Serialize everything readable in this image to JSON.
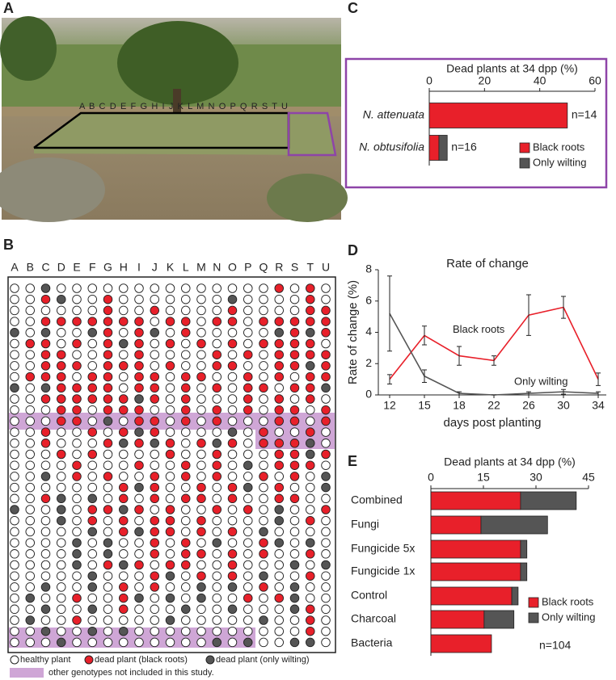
{
  "panels": [
    "A",
    "B",
    "C",
    "D",
    "E"
  ],
  "photo": {
    "column_letters": "A B C D E F G H I J K L M N O P Q R S T U"
  },
  "grid": {
    "columns": [
      "A",
      "B",
      "C",
      "D",
      "E",
      "F",
      "G",
      "H",
      "I",
      "J",
      "K",
      "L",
      "M",
      "N",
      "O",
      "P",
      "Q",
      "R",
      "S",
      "T",
      "U"
    ],
    "rows": [
      "..g..............r.r.",
      "..rg..r.......g....r.",
      "......r..r....r....rr",
      "..rrrrrrr.rr.rr.rrrrr",
      "g.g..gr.rg.r.....grgr",
      ".rr.r.rgr.r.r.r.rrrr.",
      "..rr..r.r....r.r.rrrr",
      "..rrr.rrr.r..rr..rrgr",
      ".rrr.rr.rr.rr..r.r.rr",
      "g.grrrr.rr.r.r.rr.rrg",
      "..rrrrrrgr.r...r.r.r.",
      "...rr.rrr..r.r.r.rr.r",
      "...rr.g.rr.r.r...rr.r",
      "..r..r.rgr....g.r..r.",
      "..r...rgrgr.rgr.rrrg.",
      "...r.r....r..r...rrgr",
      "....r...r..r.r.g.rrr.",
      "..g.r.r..r.r.r..r.r.g",
      ".......rgr..r.rg.r..g",
      "..rg.g.r.r.rr.r..rr..",
      "g..g.rrgr.r..r.r.g..r",
      "...g.r.r.rr.r....g.r.",
      ".....g.rgrr.r.r.g....",
      "....g.g..r.r.g..rg.g.",
      "....g.g..r.rr.r.r..r.",
      "....g.rgr.rr..r...g.g",
      ".....g...rg.r.r.g..r.",
      "..g..g.r.r..g.g.r.g..",
      ".g..r..rg.g.g..r.rg..",
      "..g..g.r...g..g...gr.",
      ".g..r.....g.....g..r.",
      "..g..g.g...........r.",
      "...g.........g.g..gg."
    ],
    "legend": [
      "healthy plant",
      "dead plant (black roots)",
      "dead plant (only wilting)"
    ],
    "note": "other genotypes not included in this study."
  },
  "chart_data": [
    {
      "type": "bar",
      "orientation": "horizontal",
      "stacked": true,
      "title": "Dead plants at 34 dpp (%)",
      "categories": [
        "N. attenuata",
        "N. obtusifolia"
      ],
      "series": [
        {
          "name": "Black roots",
          "color": "#e8202a",
          "values": [
            50,
            3.5
          ]
        },
        {
          "name": "Only wilting",
          "color": "#555555",
          "values": [
            0,
            3
          ]
        }
      ],
      "xlim": [
        0,
        60
      ],
      "xticks": [
        0,
        20,
        40,
        60
      ],
      "annotations": [
        "n=14",
        "n=16"
      ],
      "legend": "lower right"
    },
    {
      "type": "line",
      "title": "Rate of change",
      "categories": [
        "12",
        "15",
        "18",
        "22",
        "26",
        "30",
        "34"
      ],
      "xlabel": "days post planting",
      "ylabel": "Rate of change (%)",
      "series": [
        {
          "name": "Black roots",
          "color": "#e8202a",
          "values": [
            1,
            3.8,
            2.5,
            2.2,
            5.1,
            5.6,
            1
          ],
          "errors": [
            0.3,
            0.6,
            0.6,
            0.3,
            1.3,
            0.7,
            0.4
          ]
        },
        {
          "name": "Only wilting",
          "color": "#555555",
          "values": [
            5.2,
            1.2,
            0.1,
            0,
            0.1,
            0.2,
            0.1
          ],
          "errors": [
            2.4,
            0.4,
            0.1,
            0,
            0.1,
            0.15,
            0.1
          ]
        }
      ],
      "ylim": [
        0,
        8
      ],
      "yticks": [
        0,
        2,
        4,
        6,
        8
      ]
    },
    {
      "type": "bar",
      "orientation": "horizontal",
      "stacked": true,
      "title": "Dead plants at 34 dpp (%)",
      "categories": [
        "Combined",
        "Fungi",
        "Fungicide 5x",
        "Fungicide 1x",
        "Control",
        "Charcoal",
        "Bacteria"
      ],
      "series": [
        {
          "name": "Black roots",
          "color": "#e8202a",
          "values": [
            25.6,
            14.3,
            25.6,
            25.6,
            23.1,
            15.2,
            17.3
          ]
        },
        {
          "name": "Only wilting",
          "color": "#555555",
          "values": [
            15.9,
            19,
            1.8,
            1.8,
            1.8,
            8.5,
            0
          ]
        }
      ],
      "xlim": [
        0,
        45
      ],
      "xticks": [
        0,
        15,
        30,
        45
      ],
      "annotations": [
        "n=104"
      ],
      "legend": "lower right"
    }
  ]
}
